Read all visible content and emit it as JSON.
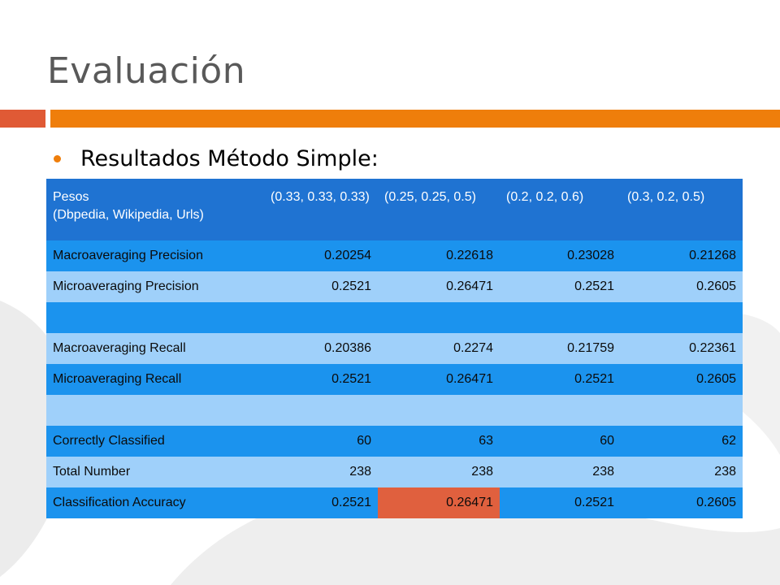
{
  "title": "Evaluación",
  "bullet": "Resultados Método Simple:",
  "colors": {
    "title": "#595959",
    "accent_orange": "#ef7e0b",
    "accent_red": "#e05a35",
    "header_blue": "#1f73d2",
    "row_blue": "#1b93ee",
    "row_light": "#9fd0fa",
    "highlight": "#e0603e"
  },
  "table": {
    "header": {
      "label_line1": "Pesos",
      "label_line2": "(Dbpedia, Wikipedia, Urls)",
      "cols": [
        "(0.33, 0.33, 0.33)",
        "(0.25, 0.25, 0.5)",
        "(0.2, 0.2, 0.6)",
        "(0.3, 0.2, 0.5)"
      ]
    },
    "rows": [
      {
        "label": "Macroaveraging Precision",
        "values": [
          "0.20254",
          "0.22618",
          "0.23028",
          "0.21268"
        ]
      },
      {
        "label": "Microaveraging Precision",
        "values": [
          "0.2521",
          "0.26471",
          "0.2521",
          "0.2605"
        ]
      },
      {
        "label": "",
        "values": [
          "",
          "",
          "",
          ""
        ]
      },
      {
        "label": "Macroaveraging Recall",
        "values": [
          "0.20386",
          "0.2274",
          "0.21759",
          "0.22361"
        ]
      },
      {
        "label": "Microaveraging Recall",
        "values": [
          "0.2521",
          "0.26471",
          "0.2521",
          "0.2605"
        ]
      },
      {
        "label": "",
        "values": [
          "",
          "",
          "",
          ""
        ]
      },
      {
        "label": "Correctly Classified",
        "values": [
          "60",
          "63",
          "60",
          "62"
        ]
      },
      {
        "label": "Total Number",
        "values": [
          "238",
          "238",
          "238",
          "238"
        ]
      },
      {
        "label": "Classification Accuracy",
        "values": [
          "0.2521",
          "0.26471",
          "0.2521",
          "0.2605"
        ]
      }
    ]
  }
}
